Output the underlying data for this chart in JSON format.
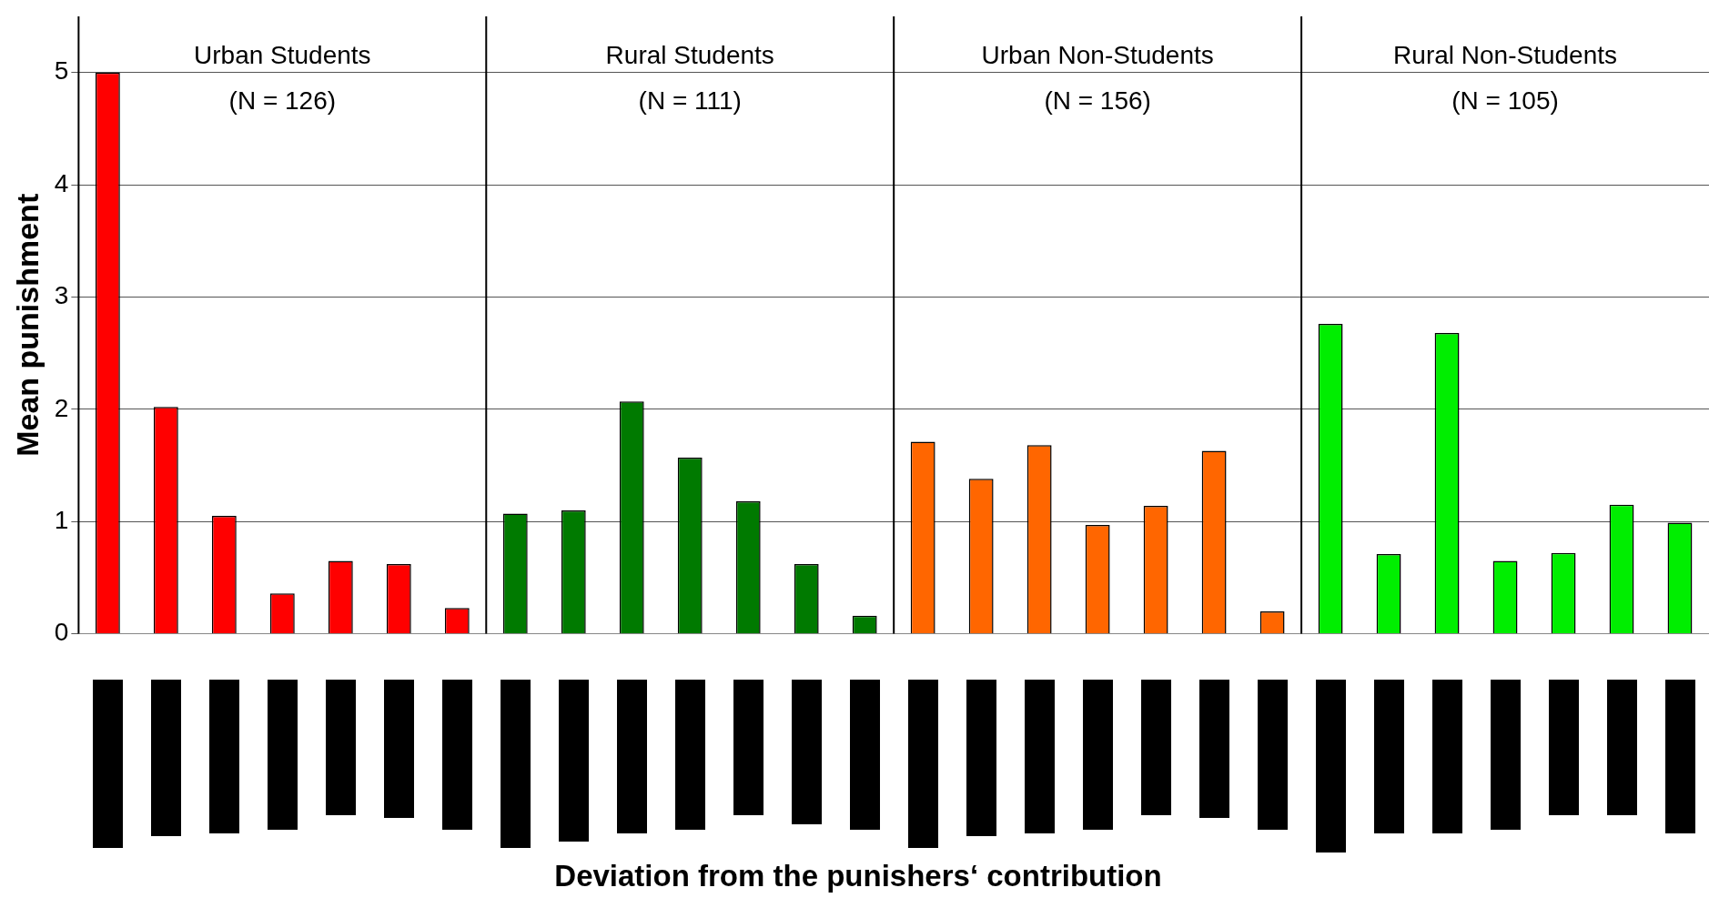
{
  "chart_data": {
    "type": "bar",
    "ylabel": "Mean punishment",
    "annotations": [
      "Urban Students",
      "(N = 126)",
      "Rural Students",
      "(N = 111)",
      "Urban Non-Students",
      "(N = 156)",
      "Rural Non-Students",
      "(N = 105)",
      "Deviation from the punishers‘ contribution"
    ],
    "categories": [
      null,
      null,
      null,
      null,
      null,
      null,
      null,
      null,
      null,
      null,
      null,
      null,
      null,
      null,
      null,
      null,
      null,
      null,
      null,
      null,
      null,
      null,
      null,
      null,
      null,
      null,
      null,
      null
    ],
    "values": [
      5.0,
      2.02,
      1.05,
      0.36,
      0.65,
      0.62,
      0.23,
      1.07,
      1.1,
      2.07,
      1.57,
      1.18,
      0.62,
      0.16,
      1.71,
      1.38,
      1.68,
      0.97,
      1.14,
      1.63,
      0.2,
      2.76,
      0.71,
      2.68,
      0.65,
      0.72,
      1.15,
      0.99
    ],
    "colors": [
      "#ff0000",
      "#ff0000",
      "#ff0000",
      "#ff0000",
      "#ff0000",
      "#ff0000",
      "#ff0000",
      "#007a00",
      "#007a00",
      "#007a00",
      "#007a00",
      "#007a00",
      "#007a00",
      "#007a00",
      "#ff6600",
      "#ff6600",
      "#ff6600",
      "#ff6600",
      "#ff6600",
      "#ff6600",
      "#ff6600",
      "#00ee00",
      "#00ee00",
      "#00ee00",
      "#00ee00",
      "#00ee00",
      "#00ee00",
      "#00ee00"
    ],
    "ylim": [
      0,
      5.5
    ],
    "yticks": [
      0,
      1,
      2,
      3,
      4,
      5
    ],
    "grid": "y"
  }
}
